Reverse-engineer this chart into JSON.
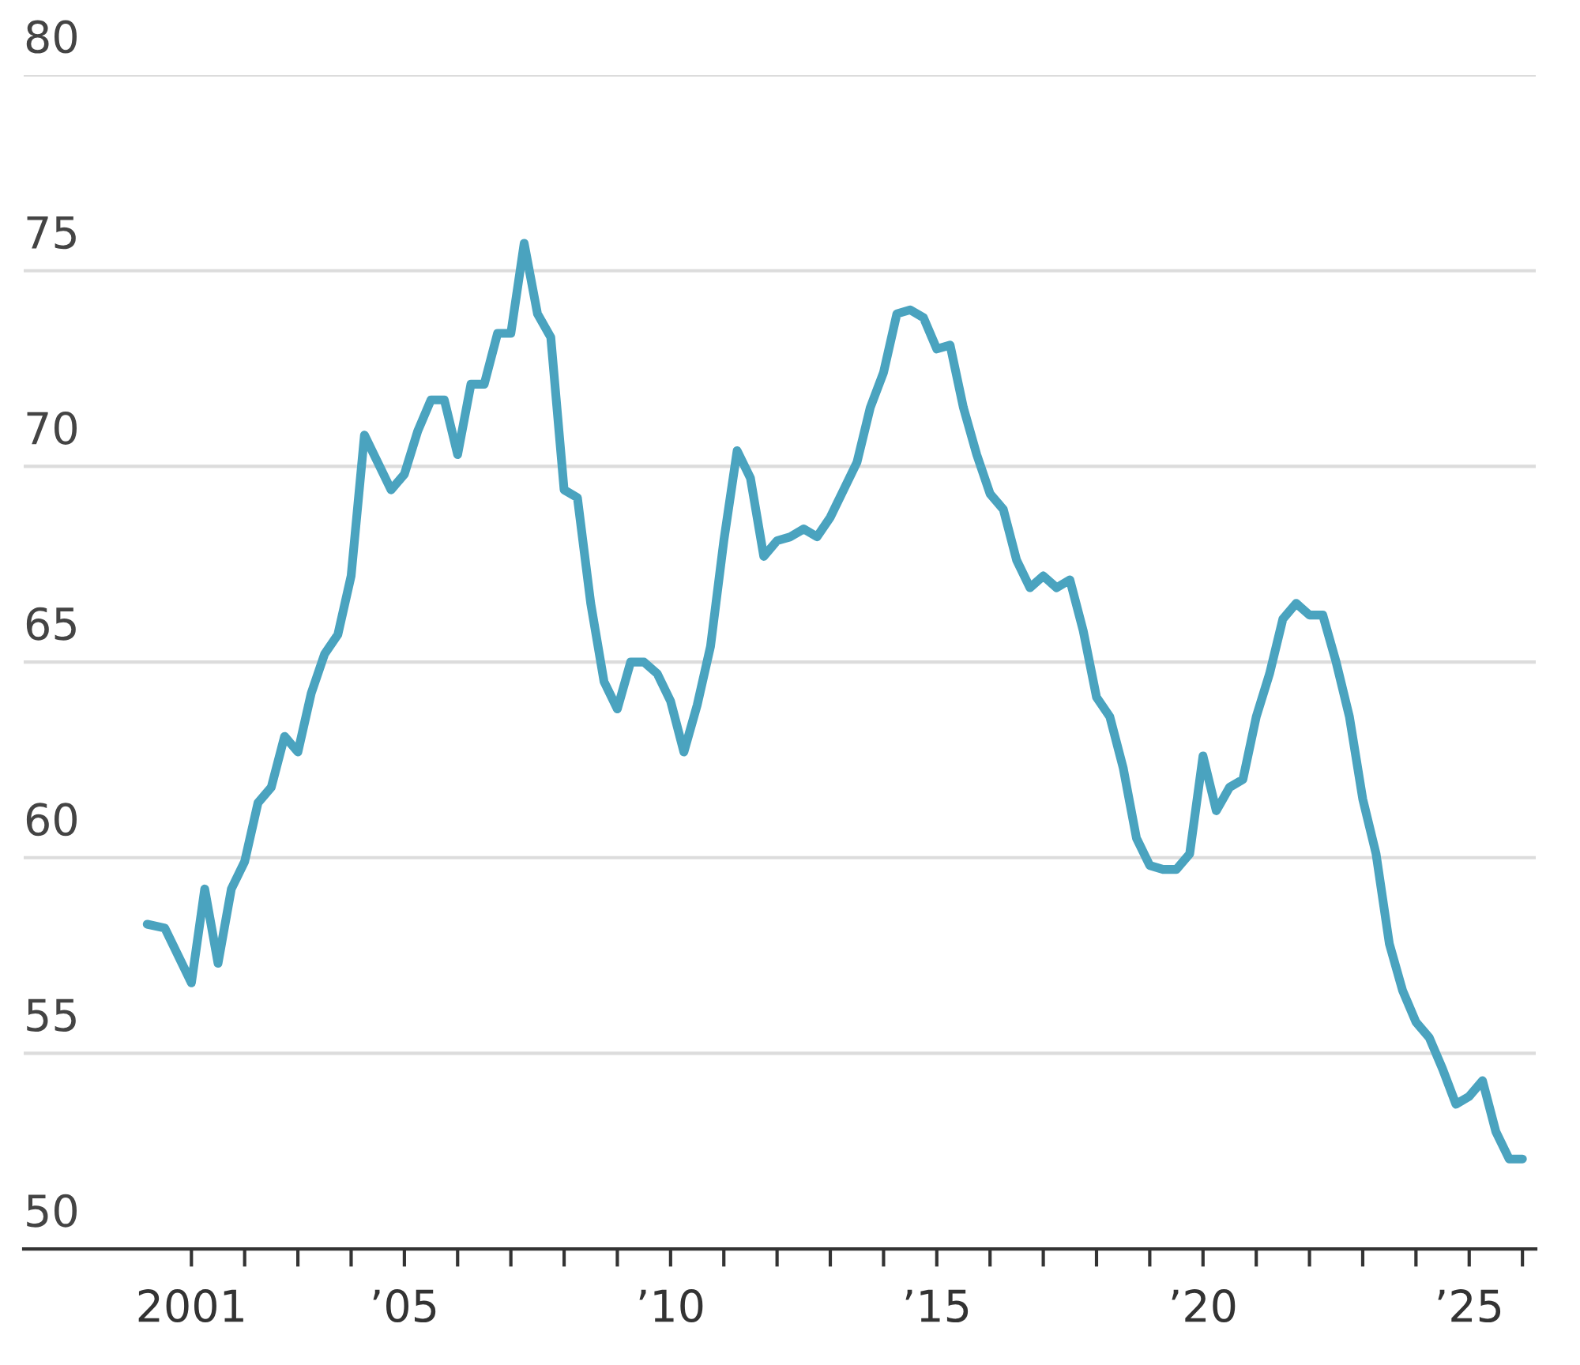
{
  "chart_data": {
    "type": "line",
    "x": [
      2000.17,
      2000.5,
      2001.0,
      2001.25,
      2001.5,
      2001.75,
      2002.0,
      2002.25,
      2002.5,
      2002.75,
      2003.0,
      2003.25,
      2003.5,
      2003.75,
      2004.0,
      2004.25,
      2004.5,
      2004.75,
      2005.0,
      2005.25,
      2005.5,
      2005.75,
      2006.0,
      2006.25,
      2006.5,
      2006.75,
      2007.0,
      2007.25,
      2007.5,
      2007.75,
      2008.0,
      2008.25,
      2008.5,
      2008.75,
      2009.0,
      2009.25,
      2009.5,
      2009.75,
      2010.0,
      2010.25,
      2010.5,
      2010.75,
      2011.0,
      2011.25,
      2011.5,
      2011.75,
      2012.0,
      2012.25,
      2012.5,
      2012.75,
      2013.0,
      2013.25,
      2013.5,
      2013.75,
      2014.0,
      2014.25,
      2014.5,
      2014.75,
      2015.0,
      2015.25,
      2015.5,
      2015.75,
      2016.0,
      2016.25,
      2016.5,
      2016.75,
      2017.0,
      2017.25,
      2017.5,
      2017.75,
      2018.0,
      2018.25,
      2018.5,
      2018.75,
      2019.0,
      2019.25,
      2019.5,
      2019.75,
      2020.0,
      2020.25,
      2020.5,
      2020.75,
      2021.0,
      2021.25,
      2021.5,
      2021.75,
      2022.0,
      2022.25,
      2022.5,
      2022.75,
      2023.0,
      2023.25,
      2023.5,
      2023.75,
      2024.0,
      2024.25,
      2024.5,
      2024.75,
      2025.0,
      2025.25,
      2025.5,
      2025.75,
      2026.0
    ],
    "series": [
      {
        "color": "#4aa3bf",
        "values": [
          58.3,
          58.2,
          56.8,
          59.2,
          57.3,
          59.2,
          59.9,
          61.4,
          61.8,
          63.1,
          62.7,
          64.2,
          65.2,
          65.7,
          67.2,
          70.8,
          70.1,
          69.4,
          69.8,
          70.9,
          71.7,
          71.7,
          70.3,
          72.1,
          72.1,
          73.4,
          73.4,
          75.7,
          73.9,
          73.3,
          69.4,
          69.2,
          66.5,
          64.5,
          63.8,
          65.0,
          65.0,
          64.7,
          64.0,
          62.7,
          63.9,
          65.4,
          68.1,
          70.4,
          69.7,
          67.7,
          68.1,
          68.2,
          68.4,
          68.2,
          68.7,
          69.4,
          70.1,
          71.5,
          72.4,
          73.9,
          74.0,
          73.8,
          73.0,
          73.1,
          71.5,
          70.3,
          69.3,
          68.9,
          67.6,
          66.9,
          67.2,
          66.9,
          67.1,
          65.8,
          64.1,
          63.6,
          62.3,
          60.5,
          59.8,
          59.7,
          59.7,
          60.1,
          62.6,
          61.2,
          61.8,
          62.0,
          63.6,
          64.7,
          66.1,
          66.5,
          66.2,
          66.2,
          65.0,
          63.6,
          61.5,
          60.1,
          57.8,
          56.6,
          55.8,
          55.4,
          54.6,
          53.7,
          53.9,
          54.3,
          53.0,
          52.3,
          52.3
        ]
      }
    ],
    "xlim": [
      1997.85,
      2026.25
    ],
    "xticks": [
      {
        "value": 2001,
        "label": "2001"
      },
      {
        "value": 2002,
        "label": null
      },
      {
        "value": 2003,
        "label": null
      },
      {
        "value": 2004,
        "label": null
      },
      {
        "value": 2005,
        "label": "’05"
      },
      {
        "value": 2006,
        "label": null
      },
      {
        "value": 2007,
        "label": null
      },
      {
        "value": 2008,
        "label": null
      },
      {
        "value": 2009,
        "label": null
      },
      {
        "value": 2010,
        "label": "’10"
      },
      {
        "value": 2011,
        "label": null
      },
      {
        "value": 2012,
        "label": null
      },
      {
        "value": 2013,
        "label": null
      },
      {
        "value": 2014,
        "label": null
      },
      {
        "value": 2015,
        "label": "’15"
      },
      {
        "value": 2016,
        "label": null
      },
      {
        "value": 2017,
        "label": null
      },
      {
        "value": 2018,
        "label": null
      },
      {
        "value": 2019,
        "label": null
      },
      {
        "value": 2020,
        "label": "’20"
      },
      {
        "value": 2021,
        "label": null
      },
      {
        "value": 2022,
        "label": null
      },
      {
        "value": 2023,
        "label": null
      },
      {
        "value": 2024,
        "label": null
      },
      {
        "value": 2025,
        "label": "’25"
      },
      {
        "value": 2026,
        "label": null
      }
    ],
    "ylim": [
      50,
      80
    ],
    "yticks": [
      50,
      55,
      60,
      65,
      70,
      75,
      80
    ],
    "grid": "y"
  }
}
